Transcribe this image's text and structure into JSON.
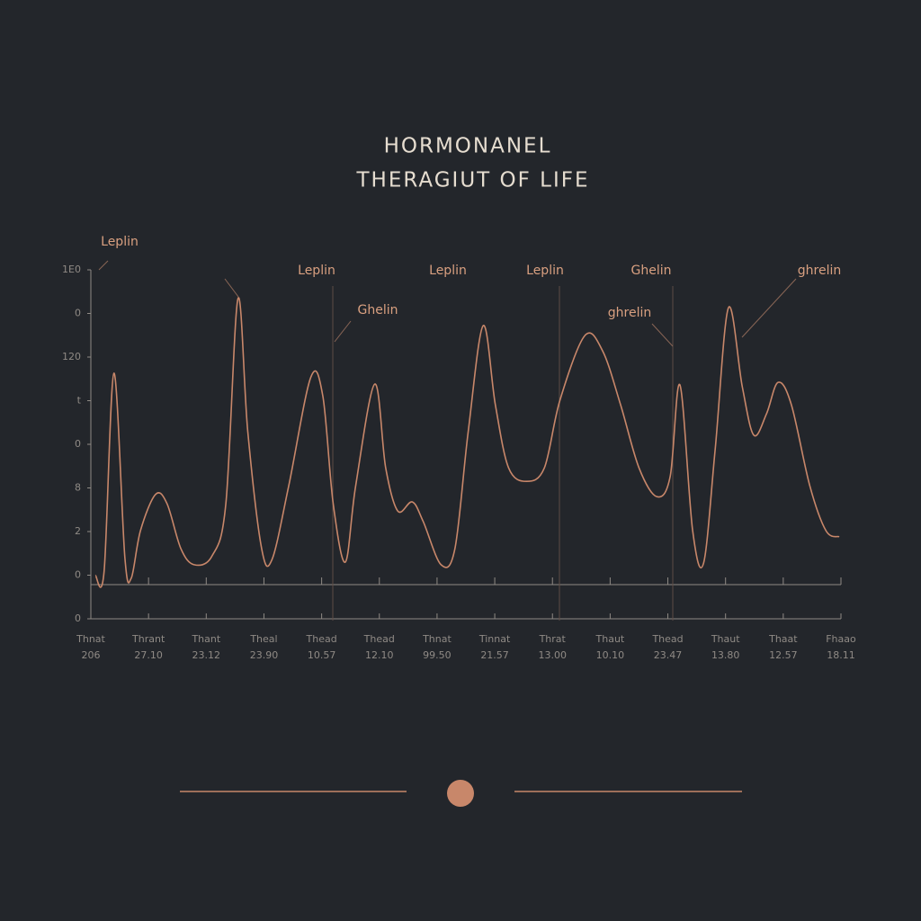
{
  "chart_data": {
    "type": "line",
    "title": "HORMONANEL",
    "subtitle": "THERAGIUT OF LIFE",
    "color": "#c8876a",
    "x": [
      0.08,
      0.23,
      0.4,
      0.59,
      0.7,
      0.86,
      1.12,
      1.32,
      1.56,
      1.79,
      2.1,
      2.34,
      2.55,
      2.72,
      2.96,
      3.14,
      3.43,
      3.81,
      4.02,
      4.2,
      4.41,
      4.59,
      4.92,
      5.11,
      5.32,
      5.57,
      5.76,
      6.07,
      6.31,
      6.54,
      6.8,
      7.01,
      7.24,
      7.55,
      7.86,
      8.13,
      8.56,
      8.87,
      9.18,
      9.5,
      9.81,
      10.04,
      10.21,
      10.43,
      10.62,
      10.82,
      11.05,
      11.29,
      11.49,
      11.71,
      11.91,
      12.14,
      12.46,
      12.74,
      12.97
    ],
    "values": [
      0.99,
      1.09,
      5.63,
      1.4,
      0.93,
      2.02,
      2.85,
      2.64,
      1.61,
      1.24,
      1.44,
      2.64,
      7.34,
      4.29,
      1.61,
      1.36,
      3.05,
      5.53,
      5.11,
      2.64,
      1.3,
      3.05,
      5.38,
      3.46,
      2.47,
      2.68,
      2.23,
      1.24,
      1.61,
      4.29,
      6.72,
      4.91,
      3.46,
      3.15,
      3.46,
      5.01,
      6.49,
      6.14,
      4.91,
      3.46,
      2.8,
      3.26,
      5.36,
      2.02,
      1.28,
      3.88,
      7.13,
      5.32,
      4.21,
      4.7,
      5.42,
      4.91,
      3.05,
      2.02,
      1.88
    ],
    "xlim": [
      0,
      13
    ],
    "xticks": [
      {
        "value": 0,
        "label": "Thnat"
      },
      {
        "value": 1,
        "label": "Thrant"
      },
      {
        "value": 2,
        "label": "Thant"
      },
      {
        "value": 3,
        "label": "Theal"
      },
      {
        "value": 4,
        "label": "Thead"
      },
      {
        "value": 5,
        "label": "Thead"
      },
      {
        "value": 6,
        "label": "Thnat"
      },
      {
        "value": 7,
        "label": "Tinnat"
      },
      {
        "value": 8,
        "label": "Thrat"
      },
      {
        "value": 9,
        "label": "Thaut"
      },
      {
        "value": 10,
        "label": "Thead"
      },
      {
        "value": 11,
        "label": "Thaut"
      },
      {
        "value": 12,
        "label": "Thaat"
      },
      {
        "value": 13,
        "label": "Fhaao"
      }
    ],
    "xtick_sublabels": [
      "206",
      "27.10",
      "23.12",
      "23.90",
      "10.57",
      "12.10",
      "99.50",
      "21.57",
      "13.00",
      "10.10",
      "23.47",
      "13.80",
      "12.57",
      "18.11"
    ],
    "ylim": [
      0,
      8
    ],
    "yticks": [
      0,
      {
        "value": 1,
        "label": "0"
      },
      2,
      {
        "value": 3,
        "label": "8"
      },
      {
        "value": 4,
        "label": "0"
      },
      {
        "value": 5,
        "label": "t"
      },
      {
        "value": 6,
        "label": "120"
      },
      {
        "value": 7,
        "label": "0"
      },
      {
        "value": 8,
        "label": "1E0"
      }
    ],
    "annotations": [
      {
        "text": "Leplin"
      },
      {
        "text": "Leplin"
      },
      {
        "text": "Ghelin"
      },
      {
        "text": "Leplin"
      },
      {
        "text": "Leplin"
      },
      {
        "text": "Ghelin"
      },
      {
        "text": "ghrelin"
      },
      {
        "text": "ghrelin"
      }
    ]
  }
}
